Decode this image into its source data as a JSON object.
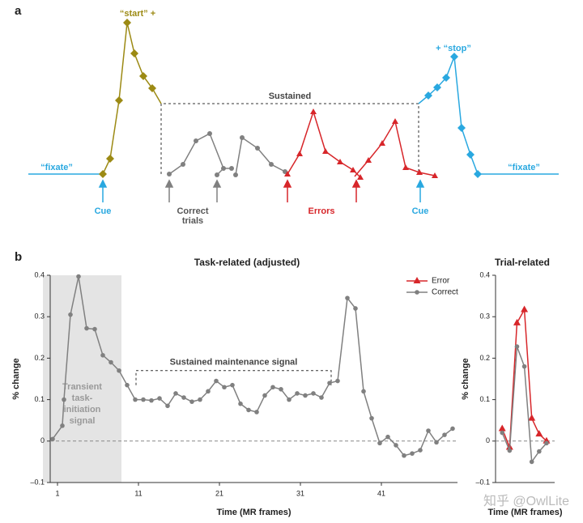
{
  "panel_a": {
    "label": "a",
    "start": "“start” +",
    "stop": "+ “stop”",
    "sustained": "Sustained",
    "fixate_left": "“fixate”",
    "fixate_right": "“fixate”",
    "cue_left": "Cue",
    "cue_right": "Cue",
    "correct": [
      "Correct",
      "trials"
    ],
    "errors": "Errors"
  },
  "panel_b": {
    "label": "b"
  },
  "watermark": "知乎 @OwlLite",
  "chart_data": [
    {
      "type": "line",
      "title": "Task-related (adjusted)",
      "xlabel": "Time (MR frames)",
      "ylabel": "% change",
      "x": [
        0.4,
        1.6,
        1.8,
        2.6,
        3.6,
        4.6,
        5.6,
        6.6,
        7.6,
        8.6,
        9.6,
        10.6,
        11.6,
        12.6,
        13.6,
        14.6,
        15.6,
        16.6,
        17.6,
        18.6,
        19.6,
        20.6,
        21.6,
        22.6,
        23.6,
        24.6,
        25.6,
        26.6,
        27.6,
        28.6,
        29.6,
        30.6,
        31.6,
        32.6,
        33.6,
        34.6,
        35.6,
        36.8,
        37.8,
        38.8,
        39.8,
        40.8,
        41.8,
        42.8,
        43.8,
        44.8,
        45.8,
        46.8,
        47.8,
        48.8,
        49.8
      ],
      "series": [
        {
          "name": "Correct",
          "color": "#808080",
          "marker": "circle",
          "values": [
            0.005,
            0.037,
            0.1,
            0.305,
            0.397,
            0.272,
            0.27,
            0.207,
            0.19,
            0.17,
            0.135,
            0.1,
            0.1,
            0.098,
            0.103,
            0.085,
            0.115,
            0.105,
            0.095,
            0.1,
            0.12,
            0.145,
            0.13,
            0.135,
            0.09,
            0.075,
            0.07,
            0.11,
            0.13,
            0.125,
            0.1,
            0.115,
            0.11,
            0.115,
            0.105,
            0.14,
            0.145,
            0.345,
            0.32,
            0.12,
            0.055,
            -0.005,
            0.01,
            -0.01,
            -0.035,
            -0.03,
            -0.022,
            0.025,
            -0.003,
            0.015,
            0.03
          ]
        }
      ],
      "xlim": [
        0.1,
        50.4
      ],
      "xticks": [
        1,
        11,
        21,
        31,
        41
      ],
      "ylim": [
        -0.1,
        0.4
      ],
      "yticks": [
        {
          "value": -0.1,
          "label": "–0.1"
        },
        0,
        0.1,
        0.2,
        0.3,
        0.4
      ],
      "zero_line": true,
      "shade": {
        "xlim": [
          -0.8,
          8.9
        ],
        "label": [
          "Transient",
          "task-",
          "initiation",
          "signal"
        ]
      },
      "bracket": {
        "xlim": [
          10.7,
          34.8
        ],
        "y": 0.17,
        "label": "Sustained maintenance signal"
      }
    },
    {
      "type": "line",
      "title": "Trial-related",
      "xlabel": "Time (MR frames)",
      "ylabel": "% change",
      "x": [
        0,
        1,
        2,
        3,
        4,
        5,
        6
      ],
      "series": [
        {
          "name": "Error",
          "color": "#d7262a",
          "marker": "triangle",
          "values": [
            0.03,
            -0.015,
            0.285,
            0.317,
            0.055,
            0.017,
            0.0
          ]
        },
        {
          "name": "Correct",
          "color": "#808080",
          "marker": "circle",
          "values": [
            0.02,
            -0.023,
            0.228,
            0.18,
            -0.05,
            -0.025,
            -0.005
          ]
        }
      ],
      "xlim": [
        -0.9,
        7.1
      ],
      "ylim": [
        -0.1,
        0.4
      ],
      "yticks": [
        {
          "value": -0.1,
          "label": "–0.1"
        },
        0,
        0.1,
        0.2,
        0.3,
        0.4
      ],
      "zero_line": true
    }
  ]
}
